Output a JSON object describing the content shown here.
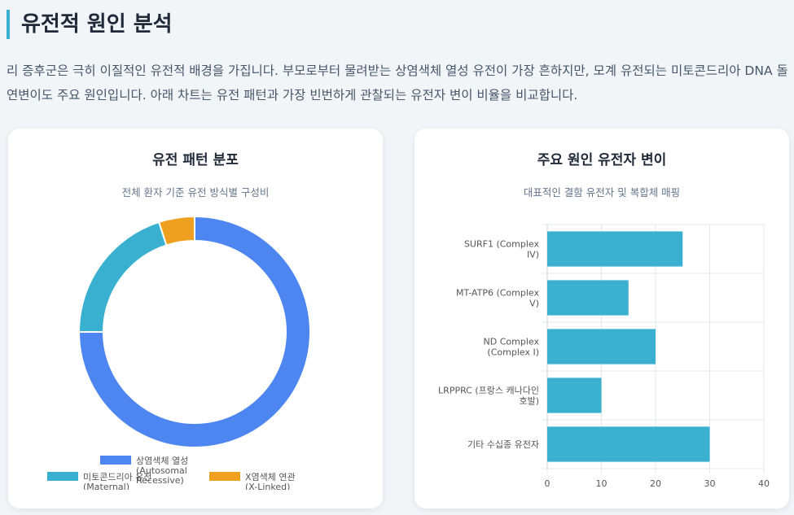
{
  "header": {
    "title": "유전적 원인 분석",
    "intro": "리 증후군은 극히 이질적인 유전적 배경을 가집니다. 부모로부터 물려받는 상염색체 열성 유전이 가장 흔하지만, 모계 유전되는 미토콘드리아 DNA 돌연변이도 주요 원인입니다. 아래 차트는 유전 패턴과 가장 빈번하게 관찰되는 유전자 변이 비율을 비교합니다."
  },
  "colors": {
    "blue": "#4d86f0",
    "teal": "#3ab0d0",
    "orange": "#f0a020",
    "accent": "#3ab0d0"
  },
  "chart_data": [
    {
      "type": "pie",
      "title": "유전 패턴 분포",
      "subtitle": "전체 환자 기준 유전 방식별 구성비",
      "categories": [
        "상염색체 열성 (Autosomal Recessive)",
        "미토콘드리아 유전 (Maternal)",
        "X염색체 연관 (X-Linked)"
      ],
      "values": [
        75,
        20,
        5
      ],
      "colors": [
        "#4d86f0",
        "#3ab0d0",
        "#f0a020"
      ],
      "legend_position": "bottom"
    },
    {
      "type": "bar",
      "orientation": "horizontal",
      "title": "주요 원인 유전자 변이",
      "subtitle": "대표적인 결함 유전자 및 복합체 매핑",
      "categories": [
        "SURF1 (Complex IV)",
        "MT-ATP6 (Complex V)",
        "ND Complex (Complex I)",
        "LRPPRC (프랑스 캐나다인 호발)",
        "기타 수십종 유전자"
      ],
      "values": [
        25,
        15,
        20,
        10,
        30
      ],
      "xlim": [
        0,
        40
      ],
      "x_ticks": [
        0,
        10,
        20,
        30,
        40
      ],
      "color": "#3ab0d0",
      "grid": true
    }
  ]
}
